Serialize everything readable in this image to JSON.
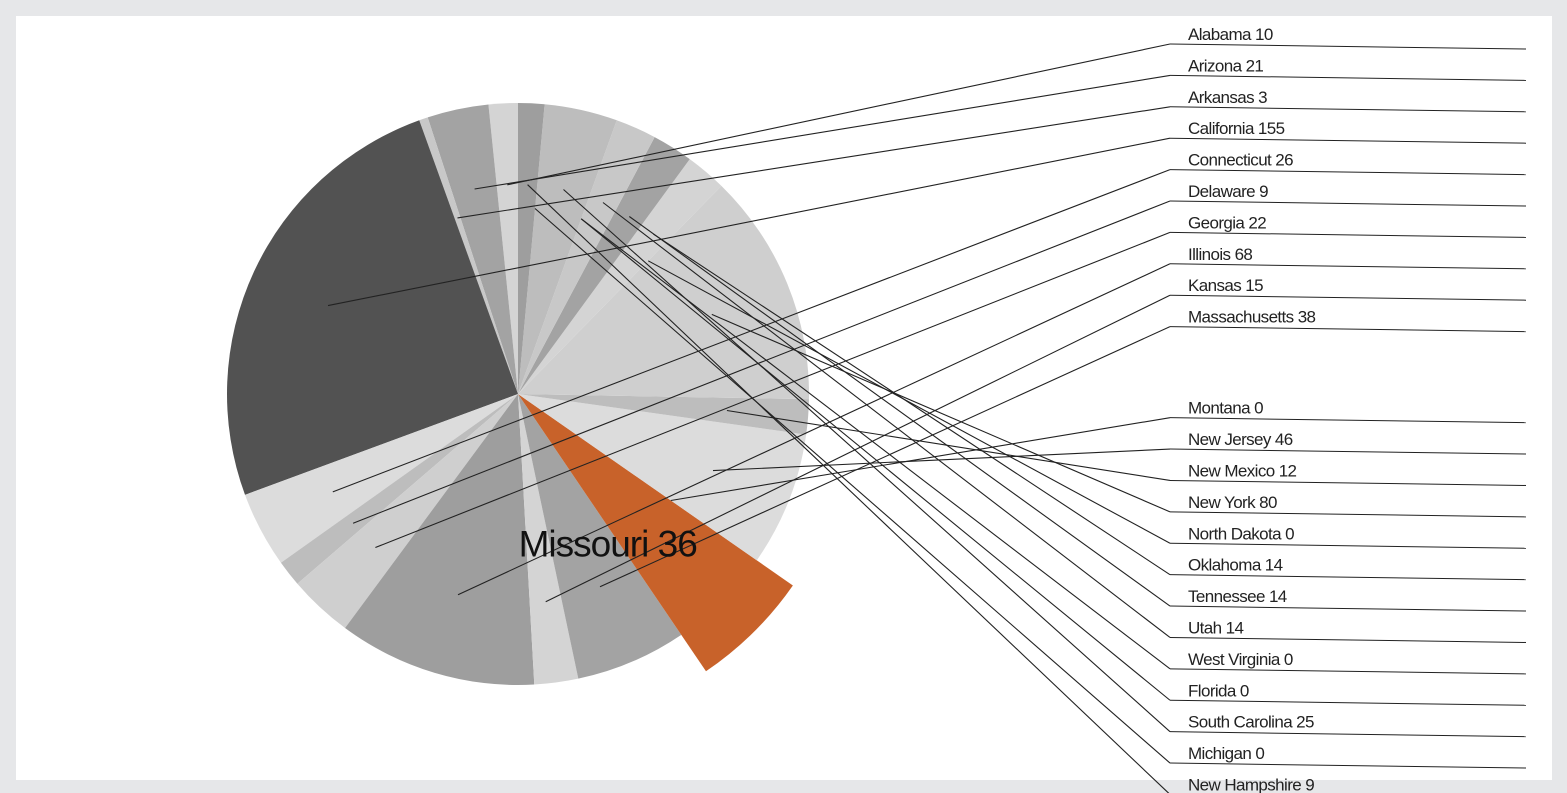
{
  "chart_data": {
    "type": "pie",
    "highlighted": "Missouri",
    "highlight_label": "Missouri 36",
    "colors": {
      "highlight": "#c8622a",
      "leader": "#222222"
    },
    "series": [
      {
        "name": "Alabama",
        "value": 10,
        "label": "Alabama 10"
      },
      {
        "name": "Arizona",
        "value": 21,
        "label": "Arizona 21"
      },
      {
        "name": "Arkansas",
        "value": 3,
        "label": "Arkansas 3"
      },
      {
        "name": "California",
        "value": 155,
        "label": "California 155"
      },
      {
        "name": "Connecticut",
        "value": 26,
        "label": "Connecticut 26"
      },
      {
        "name": "Delaware",
        "value": 9,
        "label": "Delaware 9"
      },
      {
        "name": "Georgia",
        "value": 22,
        "label": "Georgia 22"
      },
      {
        "name": "Illinois",
        "value": 68,
        "label": "Illinois 68"
      },
      {
        "name": "Kansas",
        "value": 15,
        "label": "Kansas 15"
      },
      {
        "name": "Massachusetts",
        "value": 38,
        "label": "Massachusetts 38"
      },
      {
        "name": "Missouri",
        "value": 36,
        "label": "Missouri 36"
      },
      {
        "name": "Montana",
        "value": 0,
        "label": "Montana 0"
      },
      {
        "name": "New Jersey",
        "value": 46,
        "label": "New Jersey 46"
      },
      {
        "name": "New Mexico",
        "value": 12,
        "label": "New Mexico 12"
      },
      {
        "name": "New York",
        "value": 80,
        "label": "New York 80"
      },
      {
        "name": "North Dakota",
        "value": 0,
        "label": "North Dakota 0"
      },
      {
        "name": "Oklahoma",
        "value": 14,
        "label": "Oklahoma 14"
      },
      {
        "name": "Tennessee",
        "value": 14,
        "label": "Tennessee 14"
      },
      {
        "name": "Utah",
        "value": 14,
        "label": "Utah 14"
      },
      {
        "name": "West Virginia",
        "value": 0,
        "label": "West Virginia 0"
      },
      {
        "name": "Florida",
        "value": 0,
        "label": "Florida 0"
      },
      {
        "name": "South Carolina",
        "value": 25,
        "label": "South Carolina 25"
      },
      {
        "name": "Michigan",
        "value": 0,
        "label": "Michigan 0"
      },
      {
        "name": "New Hampshire",
        "value": 9,
        "label": "New Hampshire 9"
      }
    ]
  }
}
